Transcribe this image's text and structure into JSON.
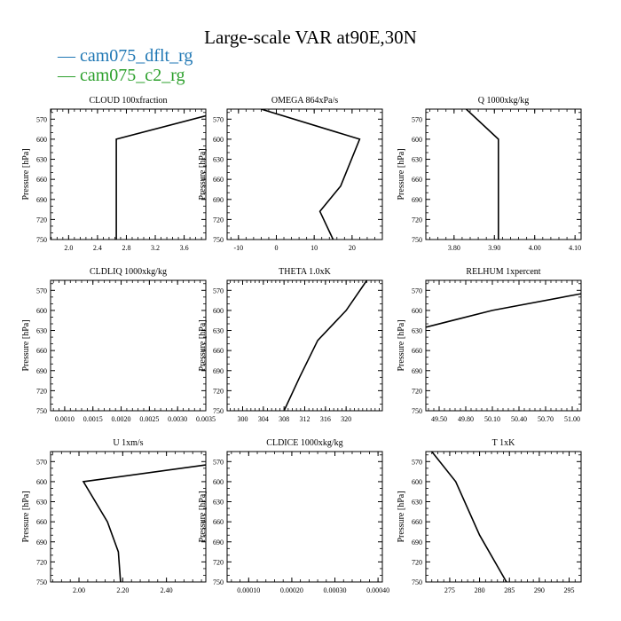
{
  "page": {
    "title": "Large-scale VAR at90E,30N"
  },
  "legend": [
    {
      "label": "cam075_dflt_rg",
      "color": "#1f77b4"
    },
    {
      "label": "cam075_c2_rg",
      "color": "#2ca02c"
    }
  ],
  "chart_data": [
    {
      "type": "line",
      "title": "CLOUD  100xfraction",
      "ylabel": "Pressure [hPa]",
      "ylim": [
        750,
        555
      ],
      "xlim": [
        1.75,
        3.9
      ],
      "xticks": [
        "2.0",
        "2.4",
        "2.8",
        "3.2",
        "3.6"
      ],
      "yticks": [
        "570",
        "600",
        "630",
        "660",
        "690",
        "720",
        "750"
      ],
      "series": [
        {
          "color": "#000000",
          "points": [
            [
              2.66,
              750
            ],
            [
              2.66,
              600
            ],
            [
              3.9,
              565
            ]
          ]
        }
      ]
    },
    {
      "type": "line",
      "title": "OMEGA  864xPa/s",
      "ylabel": "Pressure [hPa]",
      "ylim": [
        750,
        555
      ],
      "xlim": [
        -13,
        28
      ],
      "xticks": [
        "-10",
        "0",
        "10",
        "20"
      ],
      "yticks": [
        "570",
        "600",
        "630",
        "660",
        "690",
        "720",
        "750"
      ],
      "series": [
        {
          "color": "#000000",
          "points": [
            [
              15,
              750
            ],
            [
              11.5,
              708
            ],
            [
              17,
              670
            ],
            [
              22,
              600
            ],
            [
              -4,
              555
            ]
          ]
        }
      ]
    },
    {
      "type": "line",
      "title": "Q  1000xkg/kg",
      "ylabel": "Pressure [hPa]",
      "ylim": [
        750,
        555
      ],
      "xlim": [
        3.73,
        4.115
      ],
      "xticks": [
        "3.80",
        "3.90",
        "4.00",
        "4.10"
      ],
      "yticks": [
        "570",
        "600",
        "630",
        "660",
        "690",
        "720",
        "750"
      ],
      "series": [
        {
          "color": "#000000",
          "points": [
            [
              3.91,
              750
            ],
            [
              3.91,
              600
            ],
            [
              3.83,
              555
            ]
          ]
        }
      ]
    },
    {
      "type": "line",
      "title": "CLDLIQ  1000xkg/kg",
      "ylabel": "Pressure [hPa]",
      "ylim": [
        750,
        555
      ],
      "xlim": [
        0.00075,
        0.0035
      ],
      "xticks": [
        "0.0010",
        "0.0015",
        "0.0020",
        "0.0025",
        "0.0030",
        "0.0035"
      ],
      "yticks": [
        "570",
        "600",
        "630",
        "660",
        "690",
        "720",
        "750"
      ],
      "series": []
    },
    {
      "type": "line",
      "title": "THETA  1.0xK",
      "ylabel": "Pressure [hPa]",
      "ylim": [
        750,
        555
      ],
      "xlim": [
        297,
        327
      ],
      "xticks": [
        "300",
        "304",
        "308",
        "312",
        "316",
        "320"
      ],
      "yticks": [
        "570",
        "600",
        "630",
        "660",
        "690",
        "720",
        "750"
      ],
      "series": [
        {
          "color": "#000000",
          "points": [
            [
              308,
              750
            ],
            [
              311,
              700
            ],
            [
              314.5,
              645
            ],
            [
              320,
              600
            ],
            [
              324,
              555
            ]
          ]
        }
      ]
    },
    {
      "type": "line",
      "title": "RELHUM  1xpercent",
      "ylabel": "Pressure [hPa]",
      "ylim": [
        750,
        555
      ],
      "xlim": [
        49.35,
        51.1
      ],
      "xticks": [
        "49.50",
        "49.80",
        "50.10",
        "50.40",
        "50.70",
        "51.00"
      ],
      "yticks": [
        "570",
        "600",
        "630",
        "660",
        "690",
        "720",
        "750"
      ],
      "series": [
        {
          "color": "#000000",
          "points": [
            [
              49.35,
              625
            ],
            [
              50.1,
              600
            ],
            [
              51.1,
              575
            ]
          ]
        }
      ]
    },
    {
      "type": "line",
      "title": "U  1xm/s",
      "ylabel": "Pressure [hPa]",
      "ylim": [
        750,
        555
      ],
      "xlim": [
        1.87,
        2.58
      ],
      "xticks": [
        "2.00",
        "2.20",
        "2.40"
      ],
      "yticks": [
        "570",
        "600",
        "630",
        "660",
        "690",
        "720",
        "750"
      ],
      "series": [
        {
          "color": "#000000",
          "points": [
            [
              2.19,
              750
            ],
            [
              2.18,
              705
            ],
            [
              2.13,
              660
            ],
            [
              2.02,
              600
            ],
            [
              2.58,
              575
            ]
          ]
        }
      ]
    },
    {
      "type": "line",
      "title": "CLDICE  1000xkg/kg",
      "ylabel": "Pressure [hPa]",
      "ylim": [
        750,
        555
      ],
      "xlim": [
        5e-05,
        0.00041
      ],
      "xticks": [
        "0.00010",
        "0.00020",
        "0.00030",
        "0.00040"
      ],
      "yticks": [
        "570",
        "600",
        "630",
        "660",
        "690",
        "720",
        "750"
      ],
      "series": []
    },
    {
      "type": "line",
      "title": "T  1xK",
      "ylabel": "Pressure [hPa]",
      "ylim": [
        750,
        555
      ],
      "xlim": [
        271,
        297
      ],
      "xticks": [
        "275",
        "280",
        "285",
        "290",
        "295"
      ],
      "yticks": [
        "570",
        "600",
        "630",
        "660",
        "690",
        "720",
        "750"
      ],
      "series": [
        {
          "color": "#000000",
          "points": [
            [
              284.5,
              750
            ],
            [
              280,
              680
            ],
            [
              276,
              600
            ],
            [
              272,
              555
            ]
          ]
        }
      ]
    }
  ]
}
